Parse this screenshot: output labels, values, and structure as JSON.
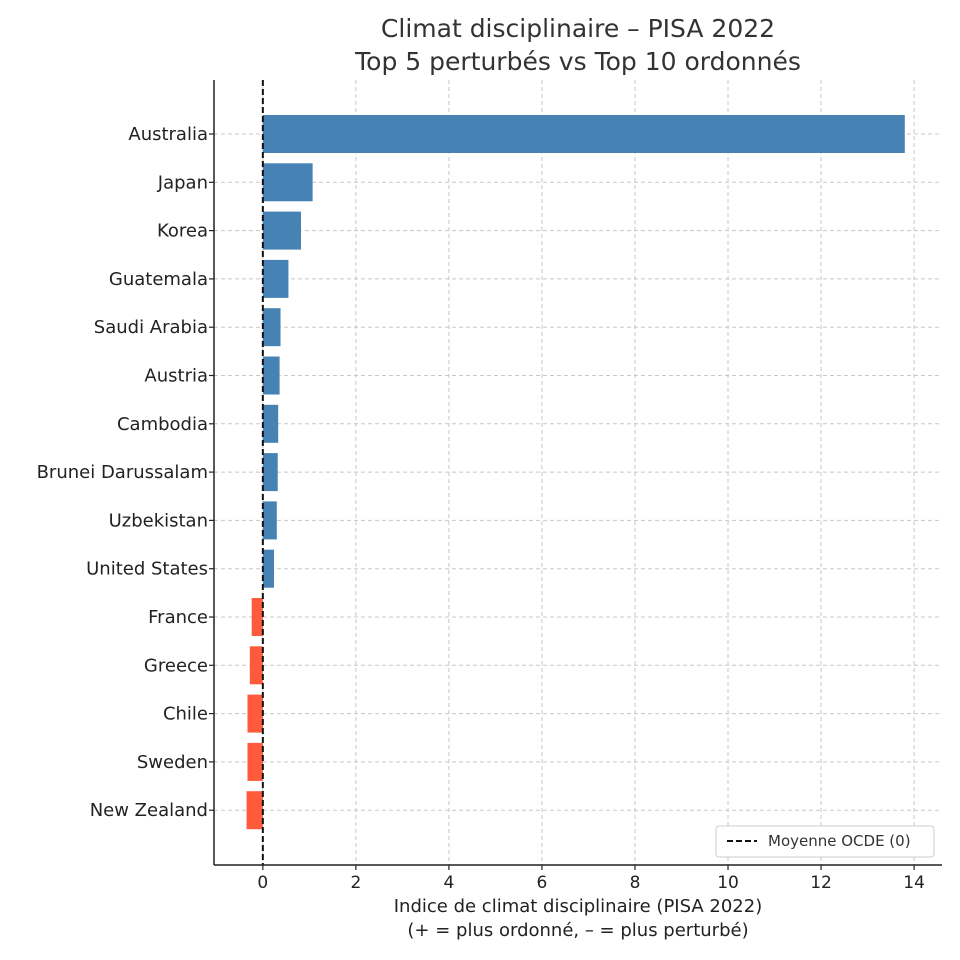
{
  "chart_data": {
    "type": "bar",
    "orientation": "horizontal",
    "title_lines": [
      "Climat disciplinaire – PISA 2022",
      "Top 5 perturbés vs Top 10 ordonnés"
    ],
    "xlabel_lines": [
      "Indice de climat disciplinaire (PISA 2022)",
      "(+ = plus ordonné, – = plus perturbé)"
    ],
    "ylabel": "",
    "categories": [
      "Australia",
      "Japan",
      "Korea",
      "Guatemala",
      "Saudi Arabia",
      "Austria",
      "Cambodia",
      "Brunei Darussalam",
      "Uzbekistan",
      "United States",
      "France",
      "Greece",
      "Chile",
      "Sweden",
      "New Zealand"
    ],
    "values": [
      13.8,
      1.07,
      0.82,
      0.55,
      0.38,
      0.36,
      0.33,
      0.32,
      0.3,
      0.24,
      -0.24,
      -0.28,
      -0.33,
      -0.33,
      -0.35
    ],
    "positive_color": "#4682b4",
    "negative_color": "#ff5a3c",
    "xlim": [
      -1.05,
      14.6
    ],
    "xticks": [
      0,
      2,
      4,
      6,
      8,
      10,
      12,
      14
    ],
    "xtick_labels": [
      "0",
      "2",
      "4",
      "6",
      "8",
      "10",
      "12",
      "14"
    ],
    "reference_line": {
      "value": 0,
      "label": "Moyenne OCDE (0)",
      "style": "dashed",
      "color": "#111111"
    },
    "legend_position": "bottom-right",
    "grid": true
  }
}
